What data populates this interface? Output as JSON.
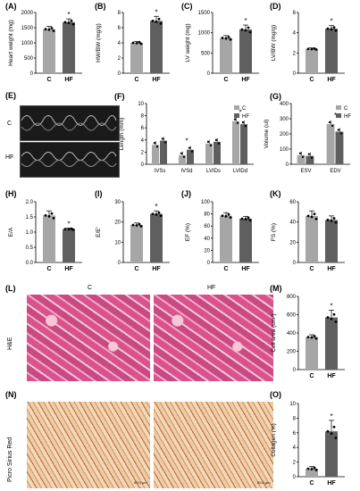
{
  "panels": {
    "A": {
      "label": "(A)",
      "ylabel": "Heart weight (mg)",
      "categories": [
        "C",
        "HF"
      ],
      "values": [
        1450,
        1680
      ],
      "err": [
        90,
        110
      ],
      "ymax": 2000,
      "ticks": [
        0,
        500,
        1000,
        1500,
        2000
      ],
      "star": "*"
    },
    "B": {
      "label": "(B)",
      "ylabel": "HW/BW (mg/g)",
      "categories": [
        "C",
        "HF"
      ],
      "values": [
        4.0,
        6.9
      ],
      "err": [
        0.2,
        0.6
      ],
      "ymax": 8,
      "ticks": [
        0,
        2,
        4,
        6,
        8
      ],
      "star": "*"
    },
    "C": {
      "label": "(C)",
      "ylabel": "LV weight (mg)",
      "categories": [
        "C",
        "HF"
      ],
      "values": [
        870,
        1080
      ],
      "err": [
        60,
        110
      ],
      "ymax": 1500,
      "ticks": [
        0,
        500,
        1000,
        1500
      ],
      "star": "*"
    },
    "D": {
      "label": "(D)",
      "ylabel": "LV/BW (mg/g)",
      "categories": [
        "C",
        "HF"
      ],
      "values": [
        2.4,
        4.4
      ],
      "err": [
        0.1,
        0.3
      ],
      "ymax": 6,
      "ticks": [
        0,
        2,
        4,
        6
      ],
      "star": "*"
    },
    "F": {
      "label": "(F)",
      "ylabel": "Length (mm)",
      "categories": [
        "IVSs",
        "IVSd",
        "LVIDs",
        "LVIDd"
      ],
      "series": [
        {
          "name": "C",
          "values": [
            3.2,
            1.5,
            3.4,
            7.1
          ]
        },
        {
          "name": "HF",
          "values": [
            3.9,
            2.4,
            3.7,
            6.6
          ]
        }
      ],
      "ymax": 10,
      "ticks": [
        0,
        2,
        4,
        6,
        8,
        10
      ],
      "stars": [
        "",
        "*",
        "",
        "*"
      ]
    },
    "G": {
      "label": "(G)",
      "ylabel": "Volume (ul)",
      "categories": [
        "ESV",
        "EDV"
      ],
      "series": [
        {
          "name": "C",
          "values": [
            60,
            265
          ]
        },
        {
          "name": "HF",
          "values": [
            55,
            215
          ]
        }
      ],
      "ymax": 400,
      "ticks": [
        0,
        100,
        200,
        300,
        400
      ],
      "stars": [
        "",
        "*"
      ]
    },
    "H": {
      "label": "(H)",
      "ylabel": "E/A",
      "categories": [
        "C",
        "HF"
      ],
      "values": [
        1.55,
        1.1
      ],
      "err": [
        0.15,
        0.03
      ],
      "ymax": 2.0,
      "ticks": [
        "0.0",
        "0.5",
        "1.0",
        "1.5",
        "2.0"
      ],
      "star": "*"
    },
    "I": {
      "label": "(I)",
      "ylabel": "E/E'",
      "categories": [
        "C",
        "HF"
      ],
      "values": [
        18.5,
        24
      ],
      "err": [
        1.0,
        1.5
      ],
      "ymax": 30,
      "ticks": [
        0,
        10,
        20,
        30
      ],
      "star": "*"
    },
    "J": {
      "label": "(J)",
      "ylabel": "EF (%)",
      "categories": [
        "C",
        "HF"
      ],
      "values": [
        77,
        72
      ],
      "err": [
        5,
        4
      ],
      "ymax": 100,
      "ticks": [
        0,
        20,
        40,
        60,
        80,
        100
      ],
      "star": ""
    },
    "K": {
      "label": "(K)",
      "ylabel": "FS (%)",
      "categories": [
        "C",
        "HF"
      ],
      "values": [
        46,
        42
      ],
      "err": [
        5,
        4
      ],
      "ymax": 60,
      "ticks": [
        0,
        20,
        40,
        60
      ],
      "star": ""
    },
    "M": {
      "label": "(M)",
      "ylabel": "Cell area (um²)",
      "categories": [
        "C",
        "HF"
      ],
      "values": [
        355,
        570
      ],
      "err": [
        25,
        80
      ],
      "ymax": 800,
      "ticks": [
        0,
        200,
        400,
        600,
        800
      ],
      "star": "*"
    },
    "O": {
      "label": "(O)",
      "ylabel": "Collagen (%)",
      "categories": [
        "C",
        "HF"
      ],
      "values": [
        1.1,
        6.2
      ],
      "err": [
        0.3,
        1.5
      ],
      "ymax": 10,
      "ticks": [
        0,
        2,
        4,
        6,
        8,
        10
      ],
      "star": "*"
    }
  },
  "legend": {
    "c": "C",
    "hf": "HF"
  },
  "echo": {
    "label": "(E)",
    "row_c": "C",
    "row_hf": "HF"
  },
  "histology": {
    "label_l": "(L)",
    "label_n": "(N)",
    "col_c": "C",
    "col_hf": "HF",
    "row_he": "H&E",
    "row_psr": "Picro Sirius Red",
    "scale": "50.0 µm"
  },
  "colors": {
    "c": "#a6a6a6",
    "hf": "#5f5f5f"
  }
}
